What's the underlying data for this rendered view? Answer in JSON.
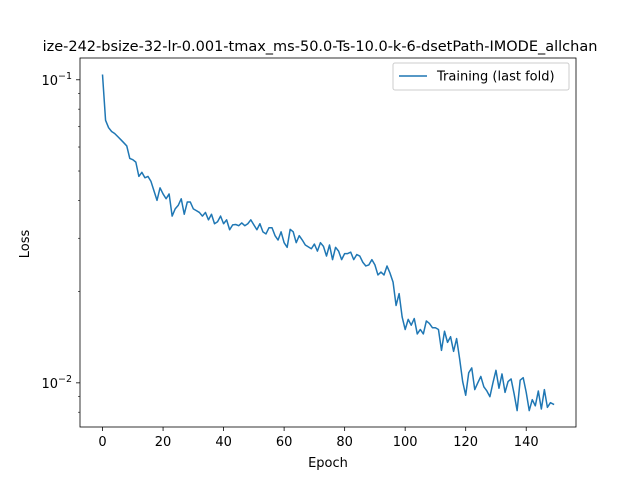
{
  "chart_data": {
    "type": "line",
    "title": "ize-242-bsize-32-lr-0.001-tmax_ms-50.0-Ts-10.0-k-6-dsetPath-IMODE_allchan",
    "xlabel": "Epoch",
    "ylabel": "Loss",
    "xlim": [
      -7.45,
      156.45
    ],
    "ylim": [
      0.00715,
      0.118
    ],
    "yscale": "log",
    "grid": false,
    "legend_position": "top-right",
    "x_ticks": [
      {
        "value": 0,
        "label": "0"
      },
      {
        "value": 20,
        "label": "20"
      },
      {
        "value": 40,
        "label": "40"
      },
      {
        "value": 60,
        "label": "60"
      },
      {
        "value": 80,
        "label": "80"
      },
      {
        "value": 100,
        "label": "100"
      },
      {
        "value": 120,
        "label": "120"
      },
      {
        "value": 140,
        "label": "140"
      }
    ],
    "y_ticks": [
      {
        "value": 0.1,
        "base": "10",
        "exp": "−1"
      },
      {
        "value": 0.01,
        "base": "10",
        "exp": "−2"
      }
    ],
    "y_minor_ticks": [
      0.008,
      0.009,
      0.02,
      0.03,
      0.04,
      0.05,
      0.06,
      0.07,
      0.08,
      0.09
    ],
    "series": [
      {
        "name": "Training (last fold)",
        "color": "#1f77b4",
        "x_start": 0,
        "x_step": 1,
        "values": [
          0.1035,
          0.0735,
          0.0695,
          0.0675,
          0.0665,
          0.065,
          0.0635,
          0.062,
          0.0605,
          0.055,
          0.0545,
          0.0535,
          0.048,
          0.0495,
          0.0475,
          0.048,
          0.0462,
          0.043,
          0.04,
          0.044,
          0.042,
          0.0405,
          0.042,
          0.0355,
          0.0375,
          0.0385,
          0.0405,
          0.036,
          0.0395,
          0.0395,
          0.0375,
          0.037,
          0.0365,
          0.0355,
          0.0365,
          0.0345,
          0.036,
          0.0335,
          0.034,
          0.0355,
          0.0335,
          0.0345,
          0.032,
          0.0332,
          0.0333,
          0.033,
          0.0337,
          0.033,
          0.0335,
          0.0345,
          0.0332,
          0.032,
          0.0335,
          0.0315,
          0.031,
          0.0325,
          0.0325,
          0.0306,
          0.0296,
          0.0315,
          0.029,
          0.028,
          0.0321,
          0.0315,
          0.029,
          0.0306,
          0.0296,
          0.0285,
          0.0281,
          0.0277,
          0.0287,
          0.0272,
          0.029,
          0.0282,
          0.0262,
          0.0285,
          0.0255,
          0.028,
          0.0272,
          0.0255,
          0.0267,
          0.0267,
          0.027,
          0.0255,
          0.0265,
          0.0262,
          0.025,
          0.0243,
          0.0245,
          0.0255,
          0.0245,
          0.0227,
          0.0232,
          0.0227,
          0.0243,
          0.023,
          0.0215,
          0.018,
          0.0197,
          0.0165,
          0.015,
          0.0162,
          0.0155,
          0.0163,
          0.0145,
          0.015,
          0.0145,
          0.016,
          0.0157,
          0.0152,
          0.0152,
          0.015,
          0.0128,
          0.0148,
          0.0136,
          0.0142,
          0.0127,
          0.014,
          0.012,
          0.0101,
          0.0091,
          0.0108,
          0.0112,
          0.0095,
          0.01,
          0.0105,
          0.0097,
          0.0094,
          0.009,
          0.01,
          0.011,
          0.0096,
          0.0107,
          0.0093,
          0.0101,
          0.0103,
          0.0092,
          0.0081,
          0.0102,
          0.0104,
          0.0093,
          0.0081,
          0.0088,
          0.0084,
          0.0094,
          0.0082,
          0.0095,
          0.0083,
          0.0086,
          0.0085
        ]
      }
    ]
  }
}
